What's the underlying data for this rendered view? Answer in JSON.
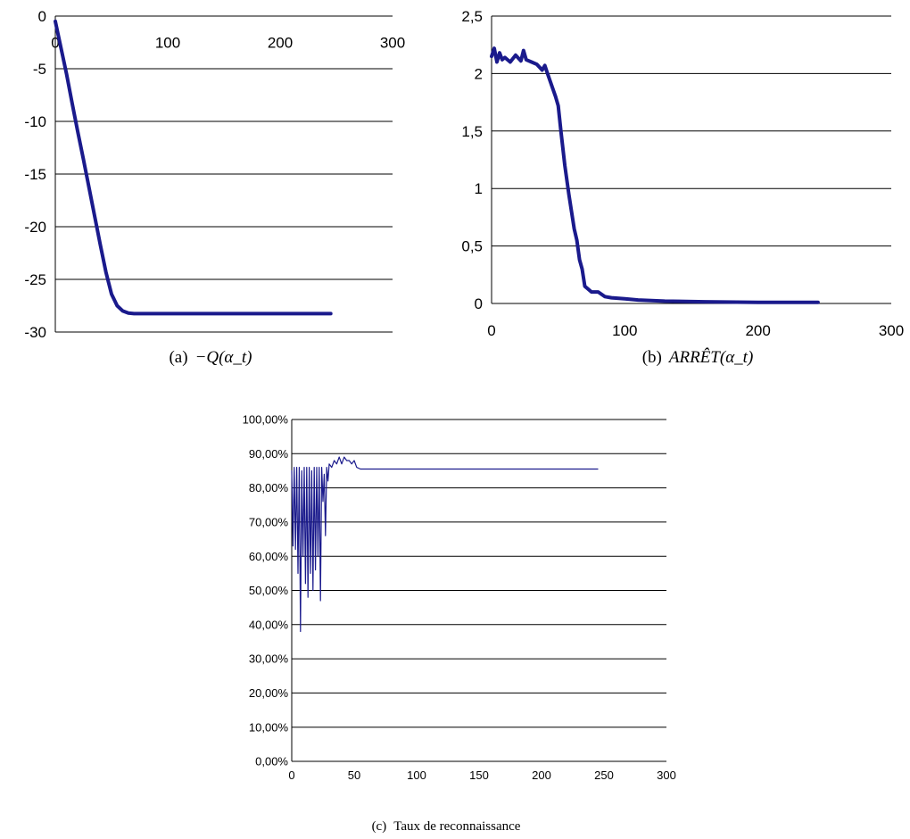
{
  "line_color": "#1a1a8c",
  "grid_color": "#000000",
  "chart_data": [
    {
      "type": "line",
      "caption_label": "(a)",
      "caption": "−Q(α_t)",
      "xlim": [
        0,
        300
      ],
      "ylim": [
        -30,
        0
      ],
      "x_ticks": [
        0,
        100,
        200,
        300
      ],
      "x_tick_labels": [
        "0",
        "100",
        "200",
        "300"
      ],
      "y_ticks": [
        0,
        -5,
        -10,
        -15,
        -20,
        -25,
        -30
      ],
      "y_tick_labels": [
        "0",
        "-5",
        "-10",
        "-15",
        "-20",
        "-25",
        "-30"
      ],
      "x_axis_position": "top",
      "grid": "horizontal",
      "series": [
        {
          "x": [
            0,
            2,
            5,
            10,
            15,
            20,
            25,
            30,
            35,
            40,
            45,
            50,
            55,
            60,
            65,
            70,
            80,
            100,
            150,
            200,
            245
          ],
          "y": [
            -0.5,
            -1.5,
            -3.0,
            -5.5,
            -8.3,
            -11.0,
            -13.6,
            -16.3,
            -19.0,
            -21.7,
            -24.3,
            -26.4,
            -27.5,
            -28.0,
            -28.2,
            -28.25,
            -28.25,
            -28.25,
            -28.25,
            -28.25,
            -28.25
          ]
        }
      ]
    },
    {
      "type": "line",
      "caption_label": "(b)",
      "caption": "ARRÊT(α_t)",
      "xlim": [
        0,
        300
      ],
      "ylim": [
        0,
        2.5
      ],
      "x_ticks": [
        0,
        100,
        200,
        300
      ],
      "x_tick_labels": [
        "0",
        "100",
        "200",
        "300"
      ],
      "y_ticks": [
        0,
        0.5,
        1,
        1.5,
        2,
        2.5
      ],
      "y_tick_labels": [
        "0",
        "0,5",
        "1",
        "1,5",
        "2",
        "2,5"
      ],
      "x_axis_position": "bottom",
      "grid": "horizontal",
      "series": [
        {
          "x": [
            0,
            2,
            4,
            6,
            8,
            10,
            14,
            18,
            22,
            24,
            26,
            30,
            34,
            38,
            40,
            42,
            45,
            48,
            50,
            52,
            55,
            58,
            60,
            62,
            64,
            66,
            68,
            70,
            72,
            75,
            80,
            85,
            90,
            100,
            110,
            130,
            160,
            200,
            245
          ],
          "y": [
            2.15,
            2.22,
            2.1,
            2.18,
            2.12,
            2.14,
            2.1,
            2.16,
            2.11,
            2.2,
            2.12,
            2.1,
            2.08,
            2.03,
            2.07,
            2.0,
            1.9,
            1.8,
            1.72,
            1.5,
            1.2,
            0.95,
            0.8,
            0.65,
            0.55,
            0.38,
            0.3,
            0.15,
            0.13,
            0.1,
            0.1,
            0.06,
            0.05,
            0.04,
            0.03,
            0.02,
            0.015,
            0.01,
            0.01
          ]
        }
      ]
    },
    {
      "type": "line",
      "caption_label": "(c)",
      "caption": "Taux de reconnaissance",
      "xlim": [
        0,
        300
      ],
      "ylim": [
        0,
        1
      ],
      "x_ticks": [
        0,
        50,
        100,
        150,
        200,
        250,
        300
      ],
      "x_tick_labels": [
        "0",
        "50",
        "100",
        "150",
        "200",
        "250",
        "300"
      ],
      "y_ticks": [
        0,
        0.1,
        0.2,
        0.3,
        0.4,
        0.5,
        0.6,
        0.7,
        0.8,
        0.9,
        1.0
      ],
      "y_tick_labels": [
        "0,00%",
        "10,00%",
        "20,00%",
        "30,00%",
        "40,00%",
        "50,00%",
        "60,00%",
        "70,00%",
        "80,00%",
        "90,00%",
        "100,00%"
      ],
      "x_axis_position": "bottom",
      "grid": "horizontal",
      "series": [
        {
          "x": [
            0,
            1,
            2,
            3,
            4,
            5,
            6,
            7,
            8,
            9,
            10,
            11,
            12,
            13,
            14,
            15,
            16,
            17,
            18,
            19,
            20,
            21,
            22,
            23,
            24,
            25,
            26,
            27,
            28,
            29,
            30,
            32,
            34,
            36,
            38,
            40,
            42,
            44,
            46,
            48,
            50,
            52,
            55,
            60,
            100,
            150,
            200,
            245
          ],
          "y": [
            0.85,
            0.63,
            0.86,
            0.62,
            0.86,
            0.55,
            0.86,
            0.38,
            0.85,
            0.6,
            0.86,
            0.52,
            0.86,
            0.48,
            0.86,
            0.55,
            0.85,
            0.5,
            0.86,
            0.56,
            0.86,
            0.6,
            0.86,
            0.47,
            0.86,
            0.76,
            0.84,
            0.66,
            0.86,
            0.82,
            0.87,
            0.86,
            0.88,
            0.87,
            0.89,
            0.87,
            0.89,
            0.88,
            0.88,
            0.87,
            0.88,
            0.86,
            0.855,
            0.855,
            0.855,
            0.855,
            0.855,
            0.855
          ]
        }
      ]
    }
  ]
}
